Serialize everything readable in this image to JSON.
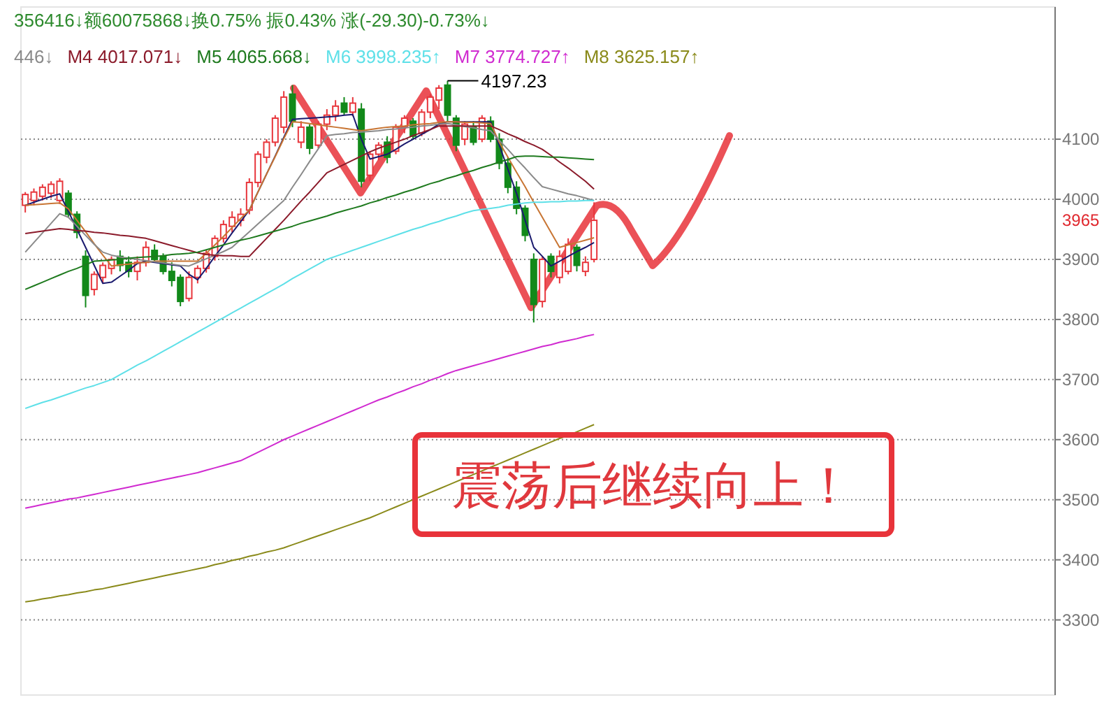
{
  "chart_data": {
    "type": "candlestick",
    "legend": "top left",
    "grid": "y",
    "tick_labels": "y",
    "categories": [
      null,
      null,
      null,
      null,
      null,
      null,
      null,
      null,
      null,
      null,
      null,
      null,
      null,
      null,
      null,
      null,
      null,
      null,
      null,
      null,
      null,
      null,
      null,
      null,
      null,
      null,
      null,
      null,
      null,
      null,
      null,
      null,
      null,
      null,
      null,
      null,
      null,
      null,
      null,
      null,
      null,
      null,
      null,
      null,
      null,
      null,
      null,
      null,
      null,
      null,
      null,
      null,
      null,
      null,
      null,
      null,
      null,
      null,
      null,
      null,
      null,
      null,
      null,
      null,
      null,
      null,
      null,
      null,
      null,
      null,
      null,
      null,
      null,
      null,
      null,
      null,
      null,
      null,
      null,
      null,
      null,
      null,
      null,
      null,
      null,
      null,
      null,
      null,
      null,
      null,
      null,
      null,
      null,
      null,
      null,
      null,
      null,
      null,
      null,
      null,
      null,
      null,
      null,
      null,
      null,
      null,
      null,
      null,
      null,
      null,
      null,
      null,
      null,
      null,
      null,
      null,
      null,
      null,
      null,
      null
    ],
    "ylim": [
      3175,
      4320
    ],
    "yticks": [
      3300,
      3400,
      3500,
      3600,
      3700,
      3800,
      3900,
      4000,
      4100
    ],
    "ohlc": [
      [
        3990,
        4012,
        3978,
        4008
      ],
      [
        3998,
        4018,
        3990,
        4012
      ],
      [
        4005,
        4025,
        3998,
        4020
      ],
      [
        4010,
        4030,
        4002,
        4025
      ],
      [
        3998,
        4035,
        3992,
        4030
      ],
      [
        4010,
        4015,
        3970,
        3975
      ],
      [
        3975,
        3980,
        3935,
        3945
      ],
      [
        3905,
        3915,
        3820,
        3840
      ],
      [
        3850,
        3880,
        3840,
        3875
      ],
      [
        3870,
        3895,
        3860,
        3890
      ],
      [
        3885,
        3905,
        3875,
        3900
      ],
      [
        3905,
        3915,
        3880,
        3890
      ],
      [
        3895,
        3905,
        3870,
        3880
      ],
      [
        3880,
        3905,
        3865,
        3895
      ],
      [
        3895,
        3930,
        3888,
        3920
      ],
      [
        3915,
        3925,
        3895,
        3900
      ],
      [
        3905,
        3910,
        3875,
        3880
      ],
      [
        3880,
        3895,
        3855,
        3865
      ],
      [
        3870,
        3875,
        3822,
        3830
      ],
      [
        3835,
        3880,
        3830,
        3870
      ],
      [
        3870,
        3890,
        3860,
        3885
      ],
      [
        3885,
        3915,
        3878,
        3910
      ],
      [
        3905,
        3940,
        3898,
        3935
      ],
      [
        3935,
        3965,
        3928,
        3958
      ],
      [
        3955,
        3980,
        3945,
        3970
      ],
      [
        3965,
        3985,
        3955,
        3975
      ],
      [
        3982,
        4035,
        3975,
        4028
      ],
      [
        4028,
        4080,
        4020,
        4075
      ],
      [
        4070,
        4100,
        4060,
        4095
      ],
      [
        4095,
        4140,
        4088,
        4135
      ],
      [
        4120,
        4180,
        4110,
        4170
      ],
      [
        4175,
        4190,
        4120,
        4130
      ],
      [
        4095,
        4130,
        4085,
        4120
      ],
      [
        4120,
        4125,
        4075,
        4085
      ],
      [
        4090,
        4130,
        4085,
        4125
      ],
      [
        4125,
        4150,
        4115,
        4140
      ],
      [
        4140,
        4165,
        4130,
        4155
      ],
      [
        4160,
        4170,
        4140,
        4145
      ],
      [
        4145,
        4170,
        4138,
        4160
      ],
      [
        4150,
        4160,
        4020,
        4030
      ],
      [
        4040,
        4080,
        4030,
        4075
      ],
      [
        4075,
        4095,
        4065,
        4090
      ],
      [
        4095,
        4105,
        4060,
        4070
      ],
      [
        4080,
        4125,
        4075,
        4120
      ],
      [
        4120,
        4140,
        4110,
        4135
      ],
      [
        4130,
        4135,
        4100,
        4105
      ],
      [
        4110,
        4150,
        4105,
        4145
      ],
      [
        4145,
        4175,
        4135,
        4170
      ],
      [
        4165,
        4190,
        4150,
        4185
      ],
      [
        4190,
        4197.23,
        4130,
        4140
      ],
      [
        4135,
        4140,
        4080,
        4090
      ],
      [
        4100,
        4130,
        4090,
        4125
      ],
      [
        4120,
        4130,
        4090,
        4095
      ],
      [
        4100,
        4140,
        4095,
        4135
      ],
      [
        4130,
        4138,
        4095,
        4100
      ],
      [
        4100,
        4110,
        4050,
        4060
      ],
      [
        4060,
        4070,
        4010,
        4020
      ],
      [
        4020,
        4030,
        3975,
        3985
      ],
      [
        3985,
        3990,
        3930,
        3940
      ],
      [
        3900,
        3910,
        3795,
        3825
      ],
      [
        3830,
        3905,
        3820,
        3900
      ],
      [
        3905,
        3910,
        3870,
        3880
      ],
      [
        3870,
        3915,
        3860,
        3905
      ],
      [
        3880,
        3935,
        3875,
        3925
      ],
      [
        3920,
        3925,
        3880,
        3890
      ],
      [
        3880,
        3905,
        3872,
        3895
      ],
      [
        3900,
        3995,
        3895,
        3965
      ],
      null,
      null,
      null,
      null,
      null,
      null,
      null,
      null,
      null,
      null,
      null,
      null,
      null,
      null,
      null,
      null,
      null,
      null,
      null,
      null,
      null,
      null,
      null,
      null,
      null,
      null,
      null,
      null,
      null,
      null,
      null,
      null,
      null,
      null,
      null,
      null,
      null,
      null,
      null,
      null,
      null,
      null,
      null,
      null,
      null,
      null,
      null,
      null,
      null,
      null,
      null,
      null,
      null
    ],
    "series": [
      {
        "type": "line",
        "color": "#1a1a6e",
        "values": [
          3990,
          3995,
          4000,
          4005,
          4009,
          3980,
          3950,
          3920,
          3890,
          3860,
          3862,
          3872,
          3882,
          3893,
          3897,
          3895,
          3893,
          3891,
          3889,
          3875,
          3866,
          3885,
          3905,
          3924,
          3944,
          3963,
          3982,
          4012,
          4042,
          4072,
          4103,
          4133,
          4134,
          4135,
          4136,
          4137,
          4138,
          4140,
          4141,
          4100,
          4067,
          4071,
          4075,
          4083,
          4092,
          4100,
          4108,
          4116,
          4125,
          4129,
          4129,
          4129,
          4129,
          4129,
          4129,
          4090,
          4050,
          4010,
          3965,
          3920,
          3905,
          3889,
          3897,
          3905,
          3913,
          3920,
          3928,
          null,
          null,
          null,
          null,
          null,
          null,
          null,
          null,
          null,
          null,
          null,
          null,
          null,
          null,
          null,
          null,
          null,
          null,
          null,
          null,
          null,
          null,
          null,
          null,
          null,
          null,
          null,
          null,
          null,
          null,
          null,
          null,
          null,
          null,
          null,
          null,
          null,
          null,
          null,
          null,
          null,
          null,
          null,
          null,
          null,
          null,
          null,
          null,
          null,
          null,
          null,
          null,
          null
        ]
      },
      {
        "type": "line",
        "color": "#c87533",
        "values": [
          3990,
          3991,
          3992,
          3993,
          3994,
          3984,
          3965,
          3946,
          3926,
          3907,
          3889,
          3891,
          3892,
          3894,
          3895,
          3897,
          3897,
          3897,
          3897,
          3897,
          3897,
          3910,
          3924,
          3938,
          3953,
          3968,
          3982,
          4012,
          4042,
          4071,
          4101,
          4129,
          4128,
          4126,
          4124,
          4122,
          4120,
          4118,
          4116,
          4114,
          4116,
          4118,
          4120,
          4121,
          4122,
          4124,
          4125,
          4126,
          4128,
          4129,
          4129,
          4128,
          4128,
          4127,
          4126,
          4095,
          4070,
          4045,
          4021,
          3995,
          3970,
          3945,
          3920,
          3924,
          3928,
          3932,
          3936,
          null,
          null,
          null,
          null,
          null,
          null,
          null,
          null,
          null,
          null,
          null,
          null,
          null,
          null,
          null,
          null,
          null,
          null,
          null,
          null,
          null,
          null,
          null,
          null,
          null,
          null,
          null,
          null,
          null,
          null,
          null,
          null,
          null,
          null,
          null,
          null,
          null,
          null,
          null,
          null,
          null,
          null,
          null,
          null,
          null,
          null,
          null,
          null,
          null,
          null,
          null,
          null,
          null
        ]
      },
      {
        "type": "line",
        "name": "446↓",
        "color": "#8a8a8a",
        "values": [
          3912,
          3928,
          3944,
          3960,
          3976,
          3970,
          3955,
          3940,
          3925,
          3912,
          3907,
          3904,
          3902,
          3900,
          3898,
          3896,
          3894,
          3892,
          3890,
          3889,
          3895,
          3901,
          3907,
          3913,
          3920,
          3933,
          3946,
          3959,
          3972,
          3985,
          3998,
          4020,
          4041,
          4063,
          4084,
          4106,
          4108,
          4109,
          4111,
          4112,
          4113,
          4114,
          4116,
          4117,
          4119,
          4120,
          4122,
          4123,
          4125,
          4126,
          4124,
          4121,
          4119,
          4116,
          4114,
          4098,
          4083,
          4067,
          4052,
          4036,
          4021,
          4017,
          4013,
          4009,
          4006,
          4002,
          3998,
          null,
          null,
          null,
          null,
          null,
          null,
          null,
          null,
          null,
          null,
          null,
          null,
          null,
          null,
          null,
          null,
          null,
          null,
          null,
          null,
          null,
          null,
          null,
          null,
          null,
          null,
          null,
          null,
          null,
          null,
          null,
          null,
          null,
          null,
          null,
          null,
          null,
          null,
          null,
          null,
          null,
          null,
          null,
          null,
          null,
          null,
          null,
          null,
          null,
          null,
          null,
          null,
          null
        ]
      },
      {
        "type": "line",
        "name": "M4 4017.071↓",
        "color": "#8b1a2a",
        "values": [
          3943,
          3945,
          3947,
          3949,
          3951,
          3950,
          3948,
          3947,
          3945,
          3944,
          3942,
          3940,
          3939,
          3937,
          3935,
          3931,
          3927,
          3923,
          3919,
          3915,
          3911,
          3908,
          3907,
          3906,
          3906,
          3905,
          3905,
          3920,
          3935,
          3950,
          3965,
          3981,
          3997,
          4012,
          4028,
          4044,
          4051,
          4058,
          4065,
          4072,
          4079,
          4085,
          4090,
          4095,
          4100,
          4106,
          4111,
          4116,
          4122,
          4122,
          4122,
          4122,
          4122,
          4122,
          4122,
          4116,
          4109,
          4103,
          4096,
          4090,
          4083,
          4073,
          4062,
          4052,
          4041,
          4030,
          4017,
          null,
          null,
          null,
          null,
          null,
          null,
          null,
          null,
          null,
          null,
          null,
          null,
          null,
          null,
          null,
          null,
          null,
          null,
          null,
          null,
          null,
          null,
          null,
          null,
          null,
          null,
          null,
          null,
          null,
          null,
          null,
          null,
          null,
          null,
          null,
          null,
          null,
          null,
          null,
          null,
          null,
          null,
          null,
          null,
          null,
          null,
          null,
          null,
          null,
          null,
          null,
          null,
          null
        ]
      },
      {
        "type": "line",
        "name": "M5 4065.668↓",
        "color": "#1e7a1e",
        "values": [
          3850,
          3856,
          3862,
          3868,
          3874,
          3880,
          3885,
          3891,
          3897,
          3898,
          3899,
          3900,
          3902,
          3903,
          3904,
          3905,
          3906,
          3908,
          3909,
          3910,
          3912,
          3916,
          3920,
          3924,
          3928,
          3932,
          3935,
          3939,
          3943,
          3947,
          3951,
          3955,
          3960,
          3964,
          3968,
          3972,
          3977,
          3981,
          3985,
          3989,
          3994,
          3998,
          4003,
          4007,
          4012,
          4016,
          4021,
          4026,
          4030,
          4035,
          4039,
          4044,
          4048,
          4053,
          4057,
          4062,
          4066,
          4071,
          4072,
          4072,
          4071,
          4070,
          4070,
          4069,
          4068,
          4067,
          4066,
          null,
          null,
          null,
          null,
          null,
          null,
          null,
          null,
          null,
          null,
          null,
          null,
          null,
          null,
          null,
          null,
          null,
          null,
          null,
          null,
          null,
          null,
          null,
          null,
          null,
          null,
          null,
          null,
          null,
          null,
          null,
          null,
          null,
          null,
          null,
          null,
          null,
          null,
          null,
          null,
          null,
          null,
          null,
          null,
          null,
          null,
          null,
          null,
          null,
          null,
          null,
          null,
          null
        ]
      },
      {
        "type": "line",
        "name": "M6 3998.235↑",
        "color": "#5ee0e8",
        "values": [
          3652,
          3657,
          3662,
          3666,
          3671,
          3676,
          3681,
          3686,
          3690,
          3695,
          3700,
          3708,
          3716,
          3724,
          3731,
          3739,
          3747,
          3755,
          3763,
          3771,
          3779,
          3787,
          3795,
          3803,
          3811,
          3819,
          3827,
          3835,
          3843,
          3851,
          3859,
          3868,
          3876,
          3884,
          3892,
          3900,
          3905,
          3910,
          3915,
          3920,
          3925,
          3930,
          3935,
          3940,
          3945,
          3950,
          3954,
          3959,
          3963,
          3968,
          3972,
          3977,
          3981,
          3983,
          3985,
          3987,
          3990,
          3992,
          3994,
          3995,
          3995,
          3996,
          3996,
          3997,
          3997,
          3998,
          3998,
          null,
          null,
          null,
          null,
          null,
          null,
          null,
          null,
          null,
          null,
          null,
          null,
          null,
          null,
          null,
          null,
          null,
          null,
          null,
          null,
          null,
          null,
          null,
          null,
          null,
          null,
          null,
          null,
          null,
          null,
          null,
          null,
          null,
          null,
          null,
          null,
          null,
          null,
          null,
          null,
          null,
          null,
          null,
          null,
          null,
          null,
          null,
          null,
          null,
          null,
          null,
          null,
          null
        ]
      },
      {
        "type": "line",
        "name": "M7 3774.727↑",
        "color": "#d02ad0",
        "values": [
          3486,
          3489,
          3492,
          3495,
          3498,
          3501,
          3503,
          3506,
          3509,
          3512,
          3515,
          3518,
          3521,
          3524,
          3527,
          3530,
          3533,
          3536,
          3539,
          3542,
          3545,
          3549,
          3553,
          3557,
          3561,
          3565,
          3572,
          3579,
          3586,
          3593,
          3600,
          3606,
          3612,
          3618,
          3624,
          3630,
          3636,
          3642,
          3648,
          3654,
          3660,
          3666,
          3671,
          3677,
          3682,
          3688,
          3693,
          3699,
          3704,
          3710,
          3715,
          3719,
          3723,
          3727,
          3731,
          3735,
          3739,
          3743,
          3747,
          3751,
          3755,
          3758,
          3762,
          3765,
          3768,
          3772,
          3775,
          null,
          null,
          null,
          null,
          null,
          null,
          null,
          null,
          null,
          null,
          null,
          null,
          null,
          null,
          null,
          null,
          null,
          null,
          null,
          null,
          null,
          null,
          null,
          null,
          null,
          null,
          null,
          null,
          null,
          null,
          null,
          null,
          null,
          null,
          null,
          null,
          null,
          null,
          null,
          null,
          null,
          null,
          null,
          null,
          null,
          null,
          null,
          null,
          null,
          null,
          null,
          null,
          null
        ]
      },
      {
        "type": "line",
        "name": "M8 3625.157↑",
        "color": "#8a8a1a",
        "values": [
          3330,
          3332,
          3335,
          3337,
          3340,
          3342,
          3345,
          3347,
          3350,
          3352,
          3355,
          3358,
          3361,
          3364,
          3367,
          3370,
          3373,
          3376,
          3379,
          3382,
          3385,
          3388,
          3392,
          3395,
          3399,
          3402,
          3406,
          3409,
          3413,
          3416,
          3420,
          3425,
          3430,
          3435,
          3440,
          3445,
          3450,
          3455,
          3460,
          3465,
          3470,
          3476,
          3482,
          3488,
          3494,
          3500,
          3506,
          3512,
          3518,
          3524,
          3530,
          3536,
          3542,
          3548,
          3554,
          3560,
          3566,
          3572,
          3578,
          3584,
          3590,
          3596,
          3602,
          3607,
          3613,
          3619,
          3625,
          null,
          null,
          null,
          null,
          null,
          null,
          null,
          null,
          null,
          null,
          null,
          null,
          null,
          null,
          null,
          null,
          null,
          null,
          null,
          null,
          null,
          null,
          null,
          null,
          null,
          null,
          null,
          null,
          null,
          null,
          null,
          null,
          null,
          null,
          null,
          null,
          null,
          null,
          null,
          null,
          null,
          null,
          null,
          null,
          null,
          null,
          null,
          null,
          null,
          null,
          null,
          null,
          null
        ]
      }
    ],
    "annotations": [
      "356416↓额60075868↓换0.75% 振0.43% 涨(-29.30)-0.73%↓",
      "4197.23",
      "3965",
      "震荡后继续向上！"
    ]
  }
}
